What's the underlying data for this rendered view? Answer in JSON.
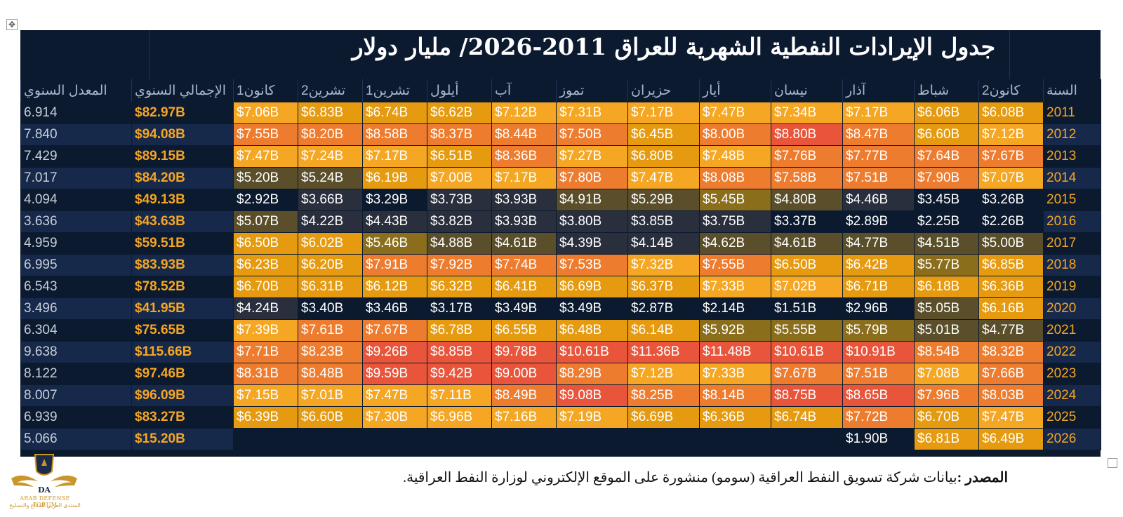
{
  "title": "جدول الإيرادات النفطية الشهرية للعراق 2011-2026/  مليار دولار",
  "header": {
    "year": "السنة",
    "months": [
      "كانون2",
      "شباط",
      "آذار",
      "نيسان",
      "أيار",
      "حزيران",
      "تموز",
      "آب",
      "أيلول",
      "تشرين1",
      "تشرين2",
      "كانون1"
    ],
    "total": "الإجمالي السنوي",
    "avg": "المعدل السنوي"
  },
  "rows": [
    {
      "year": "2011",
      "months": [
        "$6.08B",
        "$6.06B",
        "$7.17B",
        "$7.34B",
        "$7.47B",
        "$7.17B",
        "$7.31B",
        "$7.12B",
        "$6.62B",
        "$6.74B",
        "$6.83B",
        "$7.06B"
      ],
      "total": "$82.97B",
      "avg": "6.914"
    },
    {
      "year": "2012",
      "months": [
        "$7.12B",
        "$6.60B",
        "$8.47B",
        "$8.80B",
        "$8.00B",
        "$6.45B",
        "$7.50B",
        "$8.44B",
        "$8.37B",
        "$8.58B",
        "$8.20B",
        "$7.55B"
      ],
      "total": "$94.08B",
      "avg": "7.840"
    },
    {
      "year": "2013",
      "months": [
        "$7.67B",
        "$7.64B",
        "$7.77B",
        "$7.76B",
        "$7.48B",
        "$6.80B",
        "$7.27B",
        "$8.36B",
        "$6.51B",
        "$7.17B",
        "$7.24B",
        "$7.47B"
      ],
      "total": "$89.15B",
      "avg": "7.429"
    },
    {
      "year": "2014",
      "months": [
        "$7.07B",
        "$7.90B",
        "$7.51B",
        "$7.58B",
        "$8.08B",
        "$7.47B",
        "$7.80B",
        "$7.17B",
        "$7.00B",
        "$6.19B",
        "$5.24B",
        "$5.20B"
      ],
      "total": "$84.20B",
      "avg": "7.017"
    },
    {
      "year": "2015",
      "months": [
        "$3.26B",
        "$3.45B",
        "$4.46B",
        "$4.80B",
        "$5.45B",
        "$5.29B",
        "$4.91B",
        "$3.93B",
        "$3.73B",
        "$3.29B",
        "$3.66B",
        "$2.92B"
      ],
      "total": "$49.13B",
      "avg": "4.094"
    },
    {
      "year": "2016",
      "months": [
        "$2.26B",
        "$2.25B",
        "$2.89B",
        "$3.37B",
        "$3.75B",
        "$3.85B",
        "$3.80B",
        "$3.93B",
        "$3.82B",
        "$4.43B",
        "$4.22B",
        "$5.07B"
      ],
      "total": "$43.63B",
      "avg": "3.636"
    },
    {
      "year": "2017",
      "months": [
        "$5.00B",
        "$4.51B",
        "$4.77B",
        "$4.61B",
        "$4.62B",
        "$4.14B",
        "$4.39B",
        "$4.61B",
        "$4.88B",
        "$5.46B",
        "$6.02B",
        "$6.50B"
      ],
      "total": "$59.51B",
      "avg": "4.959"
    },
    {
      "year": "2018",
      "months": [
        "$6.85B",
        "$5.77B",
        "$6.42B",
        "$6.50B",
        "$7.55B",
        "$7.32B",
        "$7.53B",
        "$7.74B",
        "$7.92B",
        "$7.91B",
        "$6.20B",
        "$6.23B"
      ],
      "total": "$83.93B",
      "avg": "6.995"
    },
    {
      "year": "2019",
      "months": [
        "$6.36B",
        "$6.18B",
        "$6.71B",
        "$7.02B",
        "$7.33B",
        "$6.37B",
        "$6.69B",
        "$6.41B",
        "$6.32B",
        "$6.12B",
        "$6.31B",
        "$6.70B"
      ],
      "total": "$78.52B",
      "avg": "6.543"
    },
    {
      "year": "2020",
      "months": [
        "$6.16B",
        "$5.05B",
        "$2.96B",
        "$1.51B",
        "$2.14B",
        "$2.87B",
        "$3.49B",
        "$3.49B",
        "$3.17B",
        "$3.46B",
        "$3.40B",
        "$4.24B"
      ],
      "total": "$41.95B",
      "avg": "3.496"
    },
    {
      "year": "2021",
      "months": [
        "$4.77B",
        "$5.01B",
        "$5.79B",
        "$5.55B",
        "$5.92B",
        "$6.14B",
        "$6.48B",
        "$6.55B",
        "$6.78B",
        "$7.67B",
        "$7.61B",
        "$7.39B"
      ],
      "total": "$75.65B",
      "avg": "6.304"
    },
    {
      "year": "2022",
      "months": [
        "$8.32B",
        "$8.54B",
        "$10.91B",
        "$10.61B",
        "$11.48B",
        "$11.36B",
        "$10.61B",
        "$9.78B",
        "$8.85B",
        "$9.26B",
        "$8.23B",
        "$7.71B"
      ],
      "total": "$115.66B",
      "avg": "9.638"
    },
    {
      "year": "2023",
      "months": [
        "$7.66B",
        "$7.08B",
        "$7.51B",
        "$7.67B",
        "$7.33B",
        "$7.12B",
        "$8.29B",
        "$9.00B",
        "$9.42B",
        "$9.59B",
        "$8.48B",
        "$8.31B"
      ],
      "total": "$97.46B",
      "avg": "8.122"
    },
    {
      "year": "2024",
      "months": [
        "$8.03B",
        "$7.96B",
        "$8.65B",
        "$8.75B",
        "$8.14B",
        "$8.25B",
        "$9.08B",
        "$8.49B",
        "$7.11B",
        "$7.47B",
        "$7.01B",
        "$7.15B"
      ],
      "total": "$96.09B",
      "avg": "8.007"
    },
    {
      "year": "2025",
      "months": [
        "$7.47B",
        "$6.70B",
        "$7.72B",
        "$6.74B",
        "$6.36B",
        "$6.69B",
        "$7.19B",
        "$7.16B",
        "$6.96B",
        "$7.30B",
        "$6.60B",
        "$6.39B"
      ],
      "total": "$83.27B",
      "avg": "6.939"
    },
    {
      "year": "2026",
      "months": [
        "$6.49B",
        "$6.81B",
        "$1.90B",
        "",
        "",
        "",
        "",
        "",
        "",
        "",
        "",
        ""
      ],
      "total": "$15.20B",
      "avg": "5.066"
    }
  ],
  "colors": {
    "background": "#0c1a30",
    "stripe": "#17294a",
    "accent_gold": "#f5a623",
    "scale": [
      "#0c1a30",
      "#2a2f3e",
      "#5a4f2a",
      "#8a6e1c",
      "#e59a10",
      "#f5a623",
      "#ee7c2f",
      "#e8553a"
    ]
  },
  "source": {
    "label": "المصدر :",
    "text": "بيانات شركة تسويق النفط العراقية (سومو) منشورة على الموقع الإلكتروني لوزارة النفط العراقية."
  },
  "logo": {
    "line1": "ARAB DEFENSE FORUM",
    "line2": "المنتدى العربي للدفاع والتسليح"
  }
}
